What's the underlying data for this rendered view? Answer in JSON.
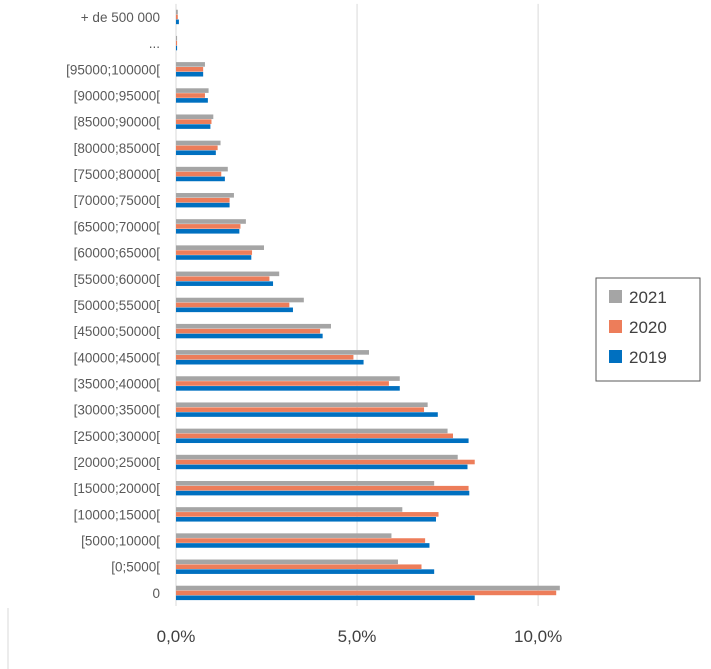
{
  "chart_data": {
    "type": "bar",
    "orientation": "horizontal",
    "title": "",
    "xlabel": "",
    "ylabel": "",
    "xlim": [
      0,
      0.135
    ],
    "x_ticks": [
      {
        "value": 0,
        "label": "0,0%"
      },
      {
        "value": 0.05,
        "label": "5,0%"
      },
      {
        "value": 0.1,
        "label": "10,0%"
      }
    ],
    "grid": "vertical",
    "legend_position": "right",
    "categories": [
      "0",
      "[0;5000[",
      "[5000;10000[",
      "[10000;15000[",
      "[15000;20000[",
      "[20000;25000[",
      "[25000;30000[",
      "[30000;35000[",
      "[35000;40000[",
      "[40000;45000[",
      "[45000;50000[",
      "[50000;55000[",
      "[55000;60000[",
      "[60000;65000[",
      "[65000;70000[",
      "[70000;75000[",
      "[75000;80000[",
      "[80000;85000[",
      "[85000;90000[",
      "[90000;95000[",
      "[95000;100000[",
      "...",
      "+ de 500 000"
    ],
    "series": [
      {
        "name": "2021",
        "color": "#a5a5a5",
        "values": [
          0.106,
          0.0613,
          0.0595,
          0.0625,
          0.0713,
          0.0778,
          0.075,
          0.0695,
          0.0618,
          0.0533,
          0.0428,
          0.0353,
          0.0285,
          0.0243,
          0.0193,
          0.016,
          0.0143,
          0.0123,
          0.0103,
          0.009,
          0.008,
          0.0003,
          0.0005
        ]
      },
      {
        "name": "2020",
        "color": "#ed7d5a",
        "values": [
          0.105,
          0.0678,
          0.0688,
          0.0725,
          0.0808,
          0.0825,
          0.0765,
          0.0685,
          0.0588,
          0.049,
          0.0398,
          0.0313,
          0.0258,
          0.021,
          0.0178,
          0.0148,
          0.0125,
          0.0115,
          0.0098,
          0.008,
          0.0075,
          0.0003,
          0.0005
        ]
      },
      {
        "name": "2019",
        "color": "#0070c0",
        "values": [
          0.0825,
          0.0713,
          0.07,
          0.0718,
          0.081,
          0.0805,
          0.0808,
          0.0723,
          0.0618,
          0.0518,
          0.0405,
          0.0323,
          0.0268,
          0.0208,
          0.0175,
          0.0148,
          0.0135,
          0.011,
          0.0095,
          0.0088,
          0.0075,
          0.0003,
          0.0008
        ]
      }
    ]
  }
}
